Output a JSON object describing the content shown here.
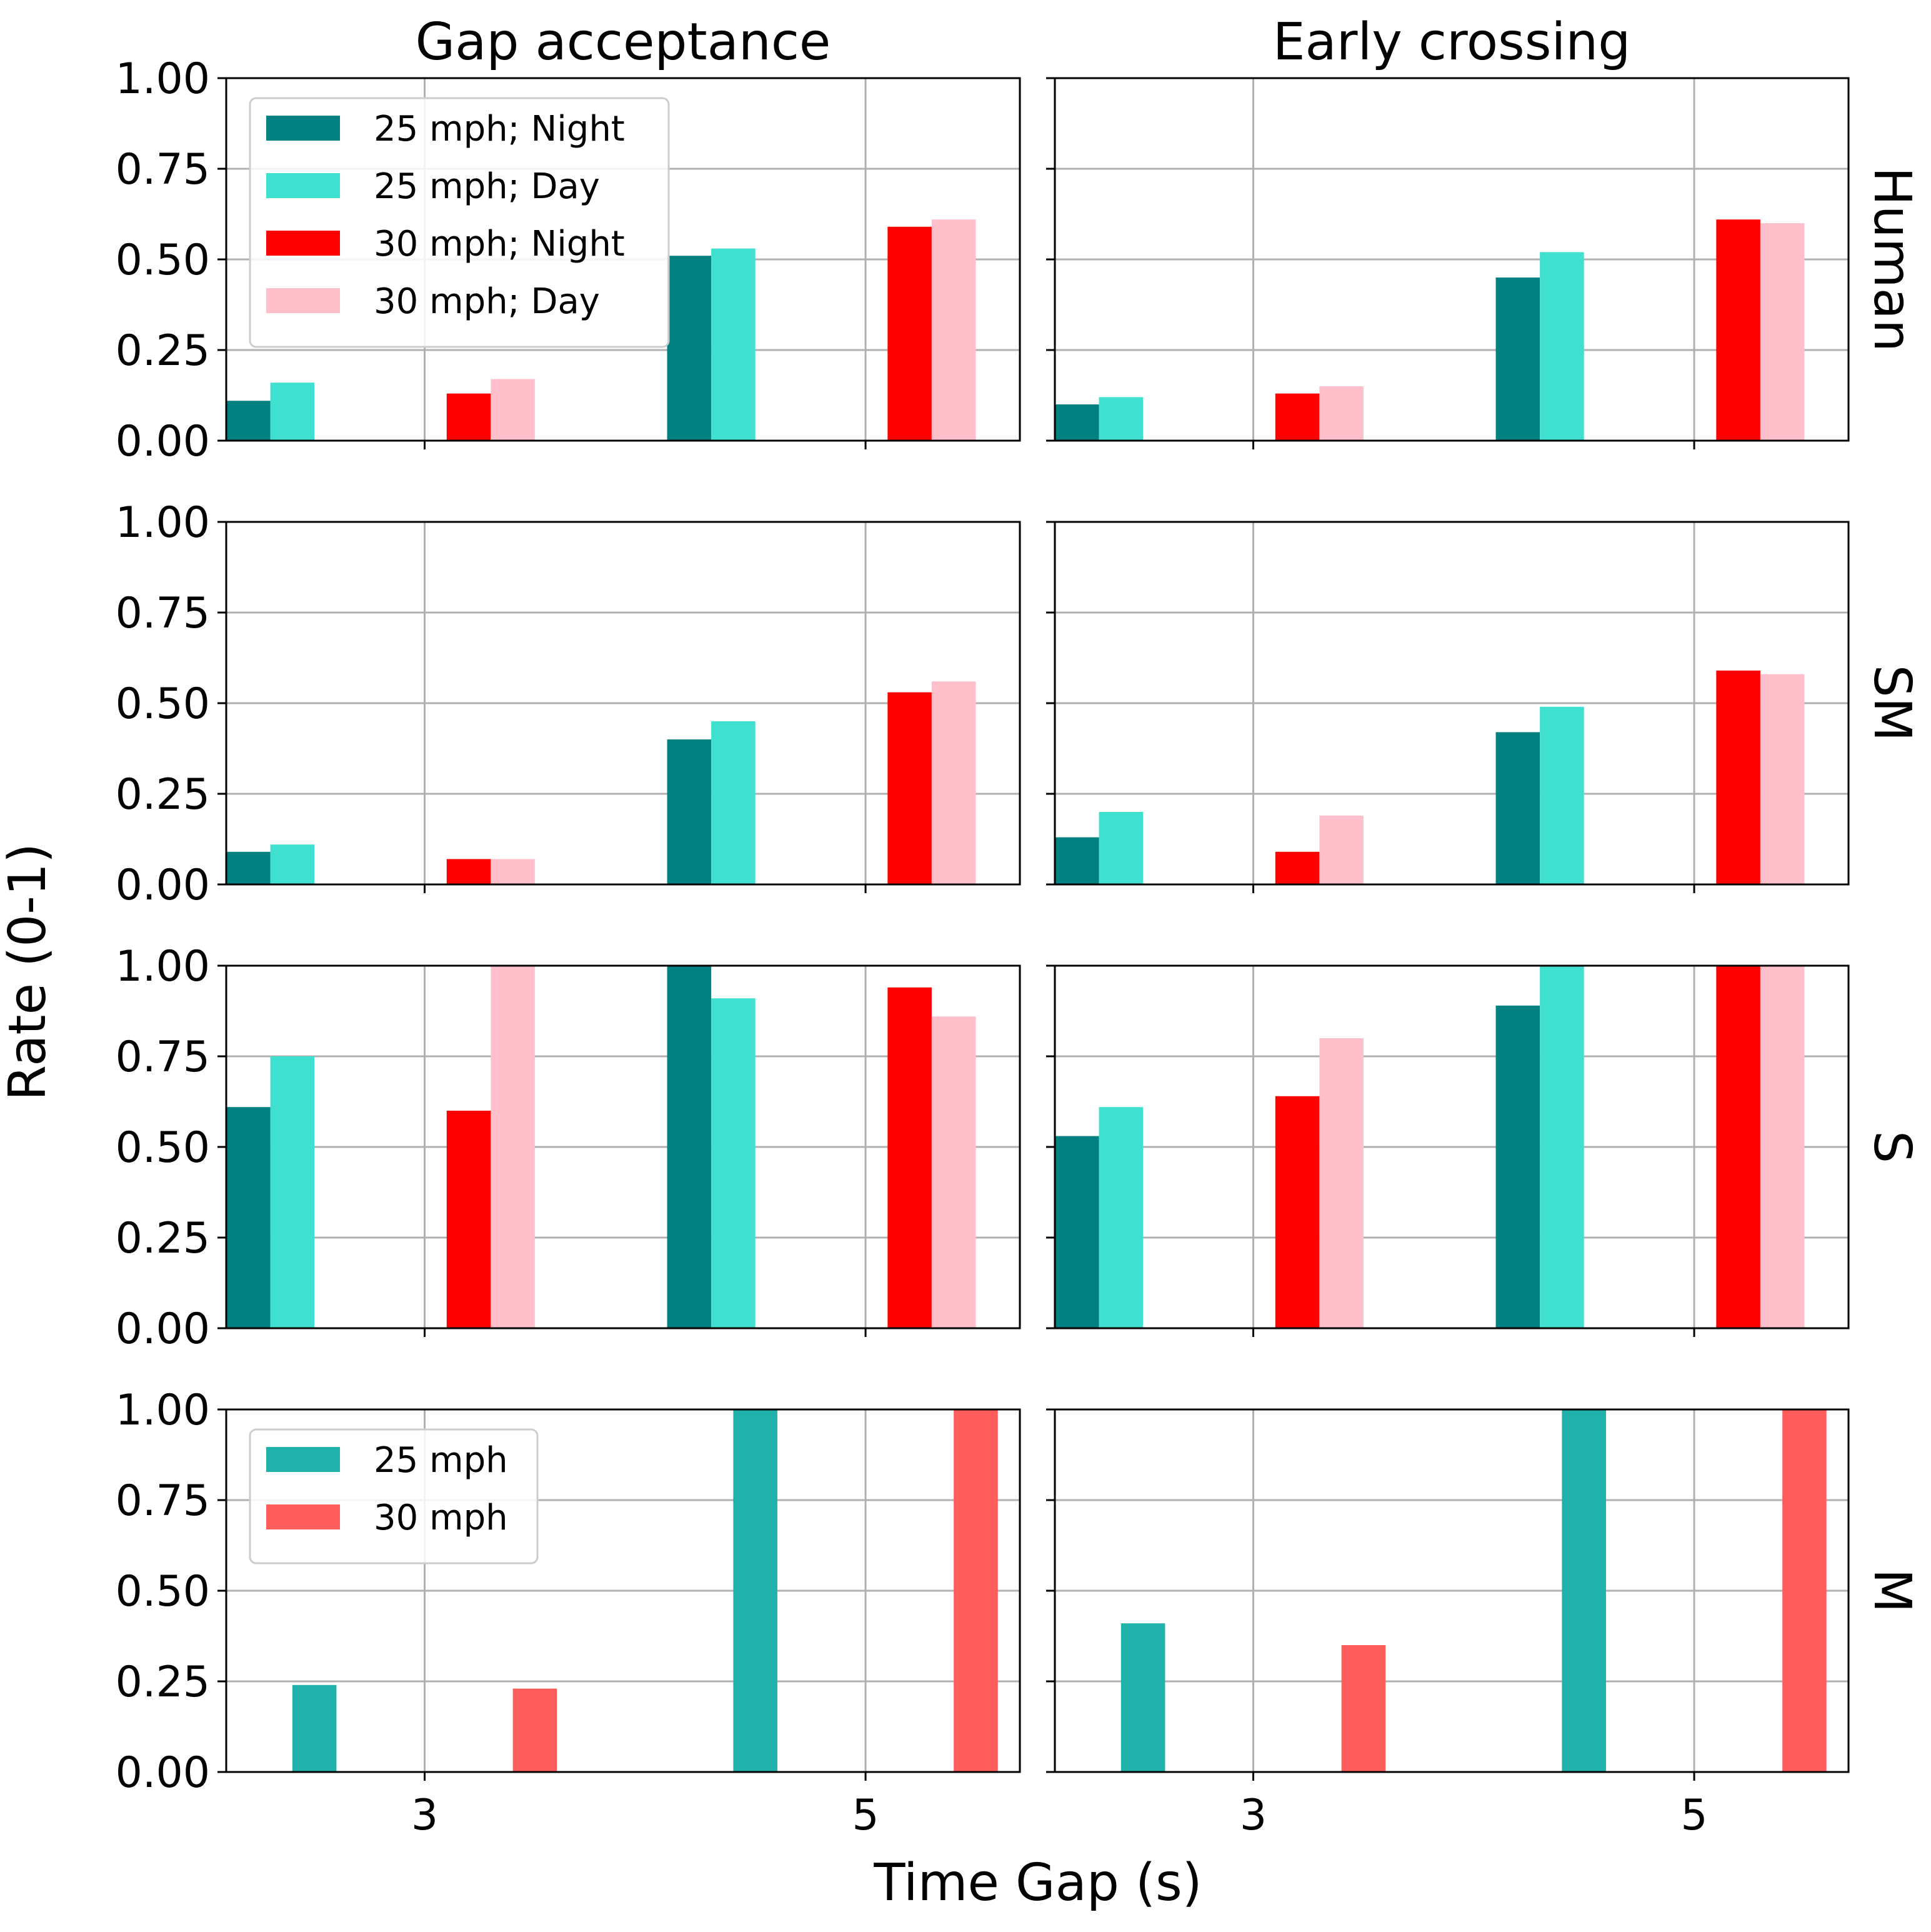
{
  "colors": {
    "25 mph; Night": "#008080",
    "25 mph; Day": "#40E0D0",
    "30 mph; Night": "#FF0000",
    "30 mph; Day": "#FFC0CB",
    "25 mph": "#20B2AA",
    "30 mph": "#FF5C5C"
  },
  "chart_data": {
    "type": "bar",
    "layout": "4 rows x 2 columns small multiples, shared x and y axes",
    "xlabel": "Time Gap (s)",
    "ylabel": "Rate (0-1)",
    "ylim": [
      0,
      1
    ],
    "yticks": [
      "0.00",
      "0.25",
      "0.50",
      "0.75",
      "1.00"
    ],
    "xticks": [
      "3",
      "5"
    ],
    "columns": [
      "Gap acceptance",
      "Early crossing"
    ],
    "rows": [
      "Human",
      "SM",
      "S",
      "M"
    ],
    "panels": [
      {
        "row": "Human",
        "column": "Gap acceptance",
        "legend": [
          "25 mph; Night",
          "25 mph; Day",
          "30 mph; Night",
          "30 mph; Day"
        ],
        "series": [
          {
            "name": "25 mph; Night",
            "gap": 3,
            "values": [
              0.11
            ]
          },
          {
            "name": "25 mph; Day",
            "gap": 3,
            "values": [
              0.16
            ]
          },
          {
            "name": "30 mph; Night",
            "gap": 3,
            "values": [
              0.13
            ]
          },
          {
            "name": "30 mph; Day",
            "gap": 3,
            "values": [
              0.17
            ]
          },
          {
            "name": "25 mph; Night",
            "gap": 5,
            "values": [
              0.51
            ]
          },
          {
            "name": "25 mph; Day",
            "gap": 5,
            "values": [
              0.53
            ]
          },
          {
            "name": "30 mph; Night",
            "gap": 5,
            "values": [
              0.59
            ]
          },
          {
            "name": "30 mph; Day",
            "gap": 5,
            "values": [
              0.61
            ]
          }
        ]
      },
      {
        "row": "Human",
        "column": "Early crossing",
        "series": [
          {
            "name": "25 mph; Night",
            "gap": 3,
            "values": [
              0.1
            ]
          },
          {
            "name": "25 mph; Day",
            "gap": 3,
            "values": [
              0.12
            ]
          },
          {
            "name": "30 mph; Night",
            "gap": 3,
            "values": [
              0.13
            ]
          },
          {
            "name": "30 mph; Day",
            "gap": 3,
            "values": [
              0.15
            ]
          },
          {
            "name": "25 mph; Night",
            "gap": 5,
            "values": [
              0.45
            ]
          },
          {
            "name": "25 mph; Day",
            "gap": 5,
            "values": [
              0.52
            ]
          },
          {
            "name": "30 mph; Night",
            "gap": 5,
            "values": [
              0.61
            ]
          },
          {
            "name": "30 mph; Day",
            "gap": 5,
            "values": [
              0.6
            ]
          }
        ]
      },
      {
        "row": "SM",
        "column": "Gap acceptance",
        "series": [
          {
            "name": "25 mph; Night",
            "gap": 3,
            "values": [
              0.09
            ]
          },
          {
            "name": "25 mph; Day",
            "gap": 3,
            "values": [
              0.11
            ]
          },
          {
            "name": "30 mph; Night",
            "gap": 3,
            "values": [
              0.07
            ]
          },
          {
            "name": "30 mph; Day",
            "gap": 3,
            "values": [
              0.07
            ]
          },
          {
            "name": "25 mph; Night",
            "gap": 5,
            "values": [
              0.4
            ]
          },
          {
            "name": "25 mph; Day",
            "gap": 5,
            "values": [
              0.45
            ]
          },
          {
            "name": "30 mph; Night",
            "gap": 5,
            "values": [
              0.53
            ]
          },
          {
            "name": "30 mph; Day",
            "gap": 5,
            "values": [
              0.56
            ]
          }
        ]
      },
      {
        "row": "SM",
        "column": "Early crossing",
        "series": [
          {
            "name": "25 mph; Night",
            "gap": 3,
            "values": [
              0.13
            ]
          },
          {
            "name": "25 mph; Day",
            "gap": 3,
            "values": [
              0.2
            ]
          },
          {
            "name": "30 mph; Night",
            "gap": 3,
            "values": [
              0.09
            ]
          },
          {
            "name": "30 mph; Day",
            "gap": 3,
            "values": [
              0.19
            ]
          },
          {
            "name": "25 mph; Night",
            "gap": 5,
            "values": [
              0.42
            ]
          },
          {
            "name": "25 mph; Day",
            "gap": 5,
            "values": [
              0.49
            ]
          },
          {
            "name": "30 mph; Night",
            "gap": 5,
            "values": [
              0.59
            ]
          },
          {
            "name": "30 mph; Day",
            "gap": 5,
            "values": [
              0.58
            ]
          }
        ]
      },
      {
        "row": "S",
        "column": "Gap acceptance",
        "series": [
          {
            "name": "25 mph; Night",
            "gap": 3,
            "values": [
              0.61
            ]
          },
          {
            "name": "25 mph; Day",
            "gap": 3,
            "values": [
              0.75
            ]
          },
          {
            "name": "30 mph; Night",
            "gap": 3,
            "values": [
              0.6
            ]
          },
          {
            "name": "30 mph; Day",
            "gap": 3,
            "values": [
              1.0
            ]
          },
          {
            "name": "25 mph; Night",
            "gap": 5,
            "values": [
              1.0
            ]
          },
          {
            "name": "25 mph; Day",
            "gap": 5,
            "values": [
              0.91
            ]
          },
          {
            "name": "30 mph; Night",
            "gap": 5,
            "values": [
              0.94
            ]
          },
          {
            "name": "30 mph; Day",
            "gap": 5,
            "values": [
              0.86
            ]
          }
        ]
      },
      {
        "row": "S",
        "column": "Early crossing",
        "series": [
          {
            "name": "25 mph; Night",
            "gap": 3,
            "values": [
              0.53
            ]
          },
          {
            "name": "25 mph; Day",
            "gap": 3,
            "values": [
              0.61
            ]
          },
          {
            "name": "30 mph; Night",
            "gap": 3,
            "values": [
              0.64
            ]
          },
          {
            "name": "30 mph; Day",
            "gap": 3,
            "values": [
              0.8
            ]
          },
          {
            "name": "25 mph; Night",
            "gap": 5,
            "values": [
              0.89
            ]
          },
          {
            "name": "25 mph; Day",
            "gap": 5,
            "values": [
              1.0
            ]
          },
          {
            "name": "30 mph; Night",
            "gap": 5,
            "values": [
              1.0
            ]
          },
          {
            "name": "30 mph; Day",
            "gap": 5,
            "values": [
              1.0
            ]
          }
        ]
      },
      {
        "row": "M",
        "column": "Gap acceptance",
        "legend": [
          "25 mph",
          "30 mph"
        ],
        "series": [
          {
            "name": "25 mph",
            "gap": 3,
            "values": [
              0.24
            ]
          },
          {
            "name": "30 mph",
            "gap": 3,
            "values": [
              0.23
            ]
          },
          {
            "name": "25 mph",
            "gap": 5,
            "values": [
              1.0
            ]
          },
          {
            "name": "30 mph",
            "gap": 5,
            "values": [
              1.0
            ]
          }
        ]
      },
      {
        "row": "M",
        "column": "Early crossing",
        "series": [
          {
            "name": "25 mph",
            "gap": 3,
            "values": [
              0.41
            ]
          },
          {
            "name": "30 mph",
            "gap": 3,
            "values": [
              0.35
            ]
          },
          {
            "name": "25 mph",
            "gap": 5,
            "values": [
              1.0
            ]
          },
          {
            "name": "30 mph",
            "gap": 5,
            "values": [
              1.0
            ]
          }
        ]
      }
    ]
  }
}
